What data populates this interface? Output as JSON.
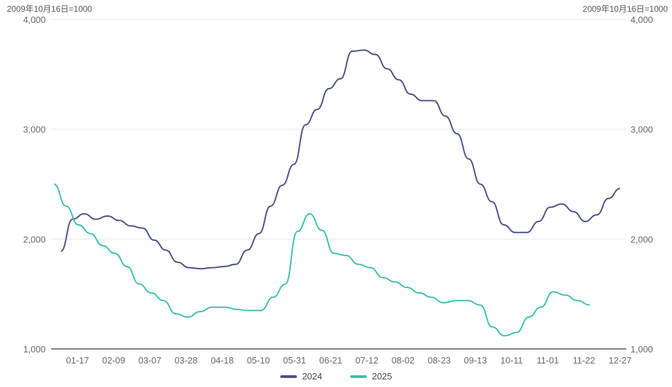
{
  "unit_left": "2009年10月16日=1000",
  "unit_right": "2009年10月16日=1000",
  "chart_data": {
    "type": "line",
    "title": "",
    "xlabel": "",
    "ylabel": "",
    "ylim": [
      1000,
      4000
    ],
    "y_ticks": [
      1000,
      2000,
      3000,
      4000
    ],
    "y_tick_labels": [
      "1,000",
      "2,000",
      "3,000",
      "4,000"
    ],
    "x_tick_labels": [
      "01-17",
      "02-09",
      "03-07",
      "03-28",
      "04-18",
      "05-10",
      "05-31",
      "06-21",
      "07-12",
      "08-02",
      "08-23",
      "09-13",
      "10-11",
      "11-01",
      "11-22",
      "12-27"
    ],
    "grid": "horizontal",
    "legend": "bottom-center",
    "series": [
      {
        "name": "2024",
        "color": "#4a5286",
        "values": [
          1890,
          2180,
          2230,
          2180,
          2210,
          2170,
          2120,
          2100,
          1990,
          1900,
          1790,
          1740,
          1730,
          1740,
          1750,
          1770,
          1900,
          2050,
          2300,
          2490,
          2680,
          3040,
          3180,
          3370,
          3460,
          3710,
          3720,
          3680,
          3550,
          3450,
          3320,
          3260,
          3260,
          3120,
          2960,
          2730,
          2500,
          2340,
          2130,
          2060,
          2060,
          2160,
          2290,
          2320,
          2250,
          2160,
          2220,
          2370,
          2460
        ]
      },
      {
        "name": "2025",
        "color": "#3ebfb0",
        "values": [
          2500,
          2300,
          2130,
          2050,
          1940,
          1870,
          1750,
          1590,
          1510,
          1440,
          1320,
          1290,
          1340,
          1380,
          1380,
          1360,
          1350,
          1350,
          1470,
          1590,
          2070,
          2230,
          2080,
          1870,
          1850,
          1770,
          1740,
          1650,
          1610,
          1560,
          1510,
          1470,
          1420,
          1440,
          1440,
          1400,
          1200,
          1120,
          1150,
          1290,
          1380,
          1520,
          1490,
          1440,
          1400
        ]
      }
    ]
  }
}
